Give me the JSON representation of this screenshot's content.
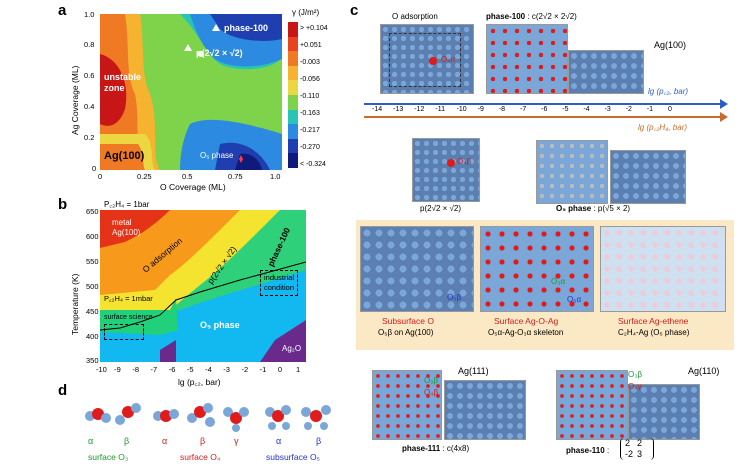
{
  "panels": {
    "a": {
      "label": "a",
      "ylabel": "Ag Coverage (ML)",
      "xlabel": "O Coverage (ML)",
      "xticks": [
        "0",
        "0.25",
        "0.5",
        "0.75",
        "1.0"
      ],
      "yticks": [
        "1.0",
        "0.8",
        "0.6",
        "0.4",
        "0.2",
        "0"
      ],
      "regions": {
        "unstable": "unstable zone",
        "ag100": "Ag(100)",
        "phase100": "phase-100",
        "p22": "p(2√2 × √2)",
        "o5": "O₅ phase"
      },
      "colorbar": {
        "title": "γ (J/m²)",
        "labels": [
          "> +0.104",
          "+0.051",
          "-0.003",
          "-0.056",
          "-0.110",
          "-0.163",
          "-0.217",
          "-0.270",
          "< -0.324"
        ],
        "colors": [
          "#c81616",
          "#e8441f",
          "#f07a24",
          "#f5b330",
          "#ecd742",
          "#7fd34a",
          "#28c4b6",
          "#2c8be0",
          "#1f3fb0",
          "#101a7a"
        ]
      }
    },
    "b": {
      "label": "b",
      "top_note": "P꜀₂H₄ = 1bar",
      "mid_note": "P꜀₂H₄ = 1mbar",
      "ylabel": "Temperature (K)",
      "xlabel": "lg (p꜀₂, bar)",
      "xticks": [
        "-10",
        "-9",
        "-8",
        "-7",
        "-6",
        "-5",
        "-4",
        "-3",
        "-2",
        "-1",
        "0",
        "1"
      ],
      "yticks": [
        "650",
        "600",
        "550",
        "500",
        "450",
        "400",
        "350"
      ],
      "regions": {
        "metal": "metal Ag(100)",
        "oads": "O adsorption",
        "p22": "p(2√2 × √2)",
        "phase100": "phase-100",
        "industrial": "industrial condition",
        "surface": "surface science",
        "o5": "O₅ phase",
        "ag2o": "Ag₂O"
      }
    },
    "c": {
      "label": "c",
      "o_ads": "O adsorption",
      "phase100_title": "phase-100",
      "phase100_cell": ": c(2√2 × 2√2)",
      "ag100": "Ag(100)",
      "o4a": "O₄α",
      "o4b": "O₄β",
      "axis1": "lg (p꜀₂, bar)",
      "axis2": "lg (p꜀₂H₄, bar)",
      "axis_ticks": [
        "-14",
        "-13",
        "-12",
        "-11",
        "-10",
        "-9",
        "-8",
        "-7",
        "-6",
        "-5",
        "-4",
        "-3",
        "-2",
        "-1",
        "0"
      ],
      "p22_caption": "p(2√2 × √2)",
      "o5phase_caption": "O₅ phase",
      "o5phase_cell": ": p(√5 × 2)",
      "o5b": "O₅β",
      "o3a": "O₃α",
      "o5a": "O₅α",
      "sub_o": "Subsurface O",
      "sub_o_sub": "O₅β on Ag(100)",
      "surf_ago": "Surface Ag-O-Ag",
      "surf_ago_sub": "O₅α-Ag-O₃α skeleton",
      "surf_ethene": "Surface Ag-ethene",
      "surf_ethene_sub": "C₂H₄-Ag (O₅ phase)",
      "ag111": "Ag(111)",
      "ag110": "Ag(110)",
      "o3b": "O₃β",
      "o4b2": "O₄β",
      "o4g": "O₄γ",
      "phase111": "phase-111",
      "phase111_cell": ": c(4x8)",
      "phase110": "phase-110",
      "phase110_cell": ":",
      "matrix": [
        "2",
        "2",
        "-2",
        "3"
      ]
    },
    "d": {
      "label": "d",
      "greek": [
        "α",
        "β",
        "α",
        "β",
        "γ",
        "α",
        "β"
      ],
      "groups": [
        "surface O₃",
        "surface O₄",
        "subsurface O₅"
      ]
    }
  }
}
